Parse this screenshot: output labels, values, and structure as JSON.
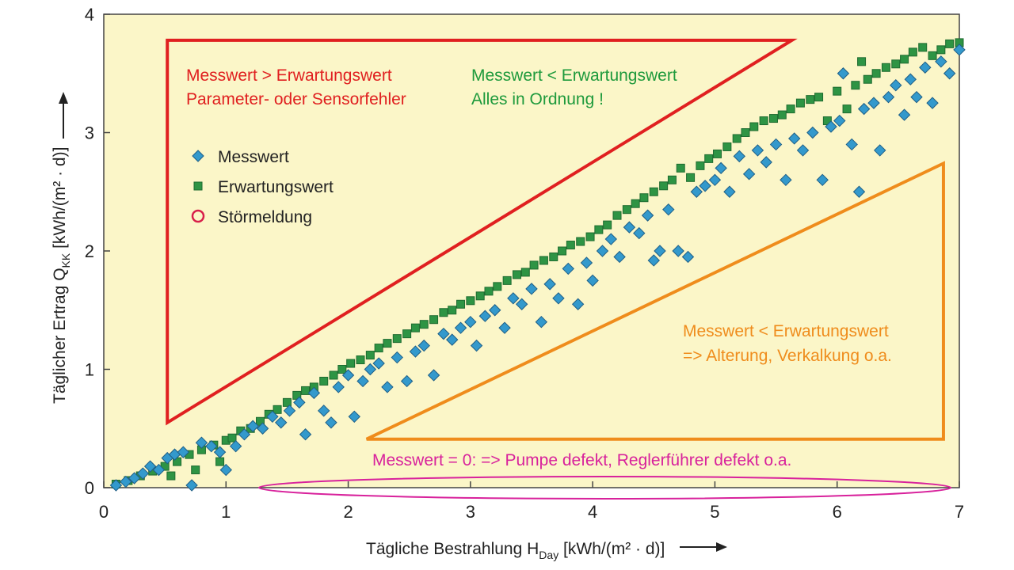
{
  "chart_data": {
    "type": "scatter",
    "xlabel": {
      "main": "Tägliche Bestrahlung H",
      "sub": "Day",
      "unit": " [kWh/(m² · d)]"
    },
    "ylabel": {
      "main": "Täglicher Ertrag Q",
      "sub": "KK",
      "unit": " [kWh/(m² · d)]"
    },
    "xlim": [
      0,
      7
    ],
    "ylim": [
      0,
      4
    ],
    "xticks": [
      "0",
      "1",
      "2",
      "3",
      "4",
      "5",
      "6",
      "7"
    ],
    "yticks": [
      "0",
      "1",
      "2",
      "3",
      "4"
    ],
    "grid": false,
    "background": "#fbf6c8",
    "legend_position": "upper-left",
    "legend": [
      {
        "label": "Messwert",
        "marker": "diamond",
        "color": "#3399cc"
      },
      {
        "label": "Erwartungswert",
        "marker": "square",
        "color": "#2e9444"
      },
      {
        "label": "Störmeldung",
        "marker": "circle",
        "color": "#d81f4a"
      }
    ],
    "series": [
      {
        "name": "Messwert",
        "marker": "diamond",
        "color": "#3399cc",
        "points": [
          [
            0.1,
            0.02
          ],
          [
            0.18,
            0.05
          ],
          [
            0.25,
            0.08
          ],
          [
            0.32,
            0.12
          ],
          [
            0.38,
            0.18
          ],
          [
            0.45,
            0.15
          ],
          [
            0.52,
            0.25
          ],
          [
            0.58,
            0.28
          ],
          [
            0.65,
            0.3
          ],
          [
            0.72,
            0.02
          ],
          [
            0.8,
            0.38
          ],
          [
            0.88,
            0.35
          ],
          [
            0.95,
            0.3
          ],
          [
            1.0,
            0.15
          ],
          [
            1.08,
            0.35
          ],
          [
            1.15,
            0.45
          ],
          [
            1.22,
            0.52
          ],
          [
            1.3,
            0.5
          ],
          [
            1.38,
            0.6
          ],
          [
            1.45,
            0.55
          ],
          [
            1.52,
            0.65
          ],
          [
            1.6,
            0.72
          ],
          [
            1.65,
            0.45
          ],
          [
            1.72,
            0.8
          ],
          [
            1.8,
            0.65
          ],
          [
            1.86,
            0.55
          ],
          [
            1.92,
            0.85
          ],
          [
            2.0,
            0.95
          ],
          [
            2.05,
            0.6
          ],
          [
            2.12,
            0.9
          ],
          [
            2.18,
            1.0
          ],
          [
            2.25,
            1.05
          ],
          [
            2.32,
            0.85
          ],
          [
            2.4,
            1.1
          ],
          [
            2.48,
            0.9
          ],
          [
            2.55,
            1.15
          ],
          [
            2.62,
            1.2
          ],
          [
            2.7,
            0.95
          ],
          [
            2.78,
            1.3
          ],
          [
            2.85,
            1.25
          ],
          [
            2.92,
            1.35
          ],
          [
            3.0,
            1.4
          ],
          [
            3.05,
            1.2
          ],
          [
            3.12,
            1.45
          ],
          [
            3.2,
            1.5
          ],
          [
            3.28,
            1.35
          ],
          [
            3.35,
            1.6
          ],
          [
            3.42,
            1.55
          ],
          [
            3.5,
            1.68
          ],
          [
            3.58,
            1.4
          ],
          [
            3.65,
            1.72
          ],
          [
            3.72,
            1.6
          ],
          [
            3.8,
            1.85
          ],
          [
            3.88,
            1.55
          ],
          [
            3.95,
            1.9
          ],
          [
            4.0,
            1.75
          ],
          [
            4.08,
            2.0
          ],
          [
            4.15,
            2.1
          ],
          [
            4.22,
            1.95
          ],
          [
            4.3,
            2.2
          ],
          [
            4.38,
            2.15
          ],
          [
            4.45,
            2.3
          ],
          [
            4.5,
            1.92
          ],
          [
            4.55,
            2.0
          ],
          [
            4.62,
            2.35
          ],
          [
            4.7,
            2.0
          ],
          [
            4.78,
            1.95
          ],
          [
            4.85,
            2.5
          ],
          [
            4.92,
            2.55
          ],
          [
            5.0,
            2.6
          ],
          [
            5.05,
            2.7
          ],
          [
            5.12,
            2.5
          ],
          [
            5.2,
            2.8
          ],
          [
            5.28,
            2.65
          ],
          [
            5.35,
            2.85
          ],
          [
            5.42,
            2.75
          ],
          [
            5.5,
            2.9
          ],
          [
            5.58,
            2.6
          ],
          [
            5.65,
            2.95
          ],
          [
            5.72,
            2.85
          ],
          [
            5.8,
            3.0
          ],
          [
            5.88,
            2.6
          ],
          [
            5.95,
            3.05
          ],
          [
            6.02,
            3.1
          ],
          [
            6.05,
            3.5
          ],
          [
            6.12,
            2.9
          ],
          [
            6.18,
            2.5
          ],
          [
            6.22,
            3.2
          ],
          [
            6.3,
            3.25
          ],
          [
            6.35,
            2.85
          ],
          [
            6.42,
            3.3
          ],
          [
            6.48,
            3.4
          ],
          [
            6.55,
            3.15
          ],
          [
            6.6,
            3.45
          ],
          [
            6.65,
            3.3
          ],
          [
            6.72,
            3.55
          ],
          [
            6.78,
            3.25
          ],
          [
            6.85,
            3.6
          ],
          [
            6.92,
            3.5
          ],
          [
            7.0,
            3.7
          ]
        ]
      },
      {
        "name": "Erwartungswert",
        "marker": "square",
        "color": "#2e9444",
        "points": [
          [
            0.1,
            0.03
          ],
          [
            0.2,
            0.06
          ],
          [
            0.3,
            0.1
          ],
          [
            0.4,
            0.14
          ],
          [
            0.5,
            0.18
          ],
          [
            0.55,
            0.1
          ],
          [
            0.6,
            0.22
          ],
          [
            0.7,
            0.28
          ],
          [
            0.75,
            0.15
          ],
          [
            0.8,
            0.32
          ],
          [
            0.9,
            0.36
          ],
          [
            0.95,
            0.22
          ],
          [
            1.0,
            0.4
          ],
          [
            1.05,
            0.42
          ],
          [
            1.12,
            0.48
          ],
          [
            1.2,
            0.5
          ],
          [
            1.28,
            0.56
          ],
          [
            1.35,
            0.62
          ],
          [
            1.42,
            0.66
          ],
          [
            1.5,
            0.72
          ],
          [
            1.58,
            0.78
          ],
          [
            1.65,
            0.82
          ],
          [
            1.72,
            0.85
          ],
          [
            1.8,
            0.9
          ],
          [
            1.88,
            0.95
          ],
          [
            1.95,
            1.0
          ],
          [
            2.02,
            1.05
          ],
          [
            2.1,
            1.08
          ],
          [
            2.18,
            1.12
          ],
          [
            2.25,
            1.18
          ],
          [
            2.32,
            1.22
          ],
          [
            2.4,
            1.26
          ],
          [
            2.48,
            1.3
          ],
          [
            2.55,
            1.35
          ],
          [
            2.62,
            1.38
          ],
          [
            2.7,
            1.42
          ],
          [
            2.78,
            1.48
          ],
          [
            2.85,
            1.5
          ],
          [
            2.92,
            1.55
          ],
          [
            3.0,
            1.58
          ],
          [
            3.08,
            1.62
          ],
          [
            3.15,
            1.66
          ],
          [
            3.22,
            1.7
          ],
          [
            3.3,
            1.75
          ],
          [
            3.38,
            1.8
          ],
          [
            3.45,
            1.82
          ],
          [
            3.52,
            1.88
          ],
          [
            3.6,
            1.92
          ],
          [
            3.68,
            1.95
          ],
          [
            3.75,
            2.0
          ],
          [
            3.82,
            2.05
          ],
          [
            3.9,
            2.08
          ],
          [
            3.98,
            2.12
          ],
          [
            4.05,
            2.18
          ],
          [
            4.12,
            2.22
          ],
          [
            4.2,
            2.3
          ],
          [
            4.28,
            2.35
          ],
          [
            4.35,
            2.4
          ],
          [
            4.42,
            2.45
          ],
          [
            4.5,
            2.5
          ],
          [
            4.58,
            2.55
          ],
          [
            4.65,
            2.6
          ],
          [
            4.72,
            2.7
          ],
          [
            4.8,
            2.62
          ],
          [
            4.88,
            2.72
          ],
          [
            4.95,
            2.78
          ],
          [
            5.02,
            2.82
          ],
          [
            5.1,
            2.88
          ],
          [
            5.18,
            2.95
          ],
          [
            5.25,
            3.0
          ],
          [
            5.32,
            3.05
          ],
          [
            5.4,
            3.1
          ],
          [
            5.48,
            3.12
          ],
          [
            5.55,
            3.15
          ],
          [
            5.62,
            3.2
          ],
          [
            5.7,
            3.25
          ],
          [
            5.78,
            3.28
          ],
          [
            5.85,
            3.3
          ],
          [
            5.92,
            3.1
          ],
          [
            6.0,
            3.35
          ],
          [
            6.08,
            3.2
          ],
          [
            6.15,
            3.4
          ],
          [
            6.2,
            3.6
          ],
          [
            6.25,
            3.45
          ],
          [
            6.32,
            3.5
          ],
          [
            6.4,
            3.55
          ],
          [
            6.48,
            3.58
          ],
          [
            6.55,
            3.62
          ],
          [
            6.62,
            3.68
          ],
          [
            6.7,
            3.72
          ],
          [
            6.78,
            3.65
          ],
          [
            6.85,
            3.7
          ],
          [
            6.92,
            3.75
          ],
          [
            7.0,
            3.76
          ]
        ]
      }
    ],
    "annotations": {
      "upper_text_red": [
        "Messwert > Erwartungswert",
        "Parameter- oder Sensorfehler"
      ],
      "upper_text_green": [
        "Messwert < Erwartungswert",
        "Alles in Ordnung !"
      ],
      "lower_text_orange": [
        "Messwert < Erwartungswert",
        "=> Alterung, Verkalkung o.a."
      ],
      "bottom_text_magenta": "Messwert = 0: => Pumpe defekt, Reglerführer defekt o.a."
    },
    "annotation_colors": {
      "red": "#e02020",
      "green": "#1e9a3c",
      "orange": "#ef8c1c",
      "magenta": "#d8229c"
    }
  }
}
